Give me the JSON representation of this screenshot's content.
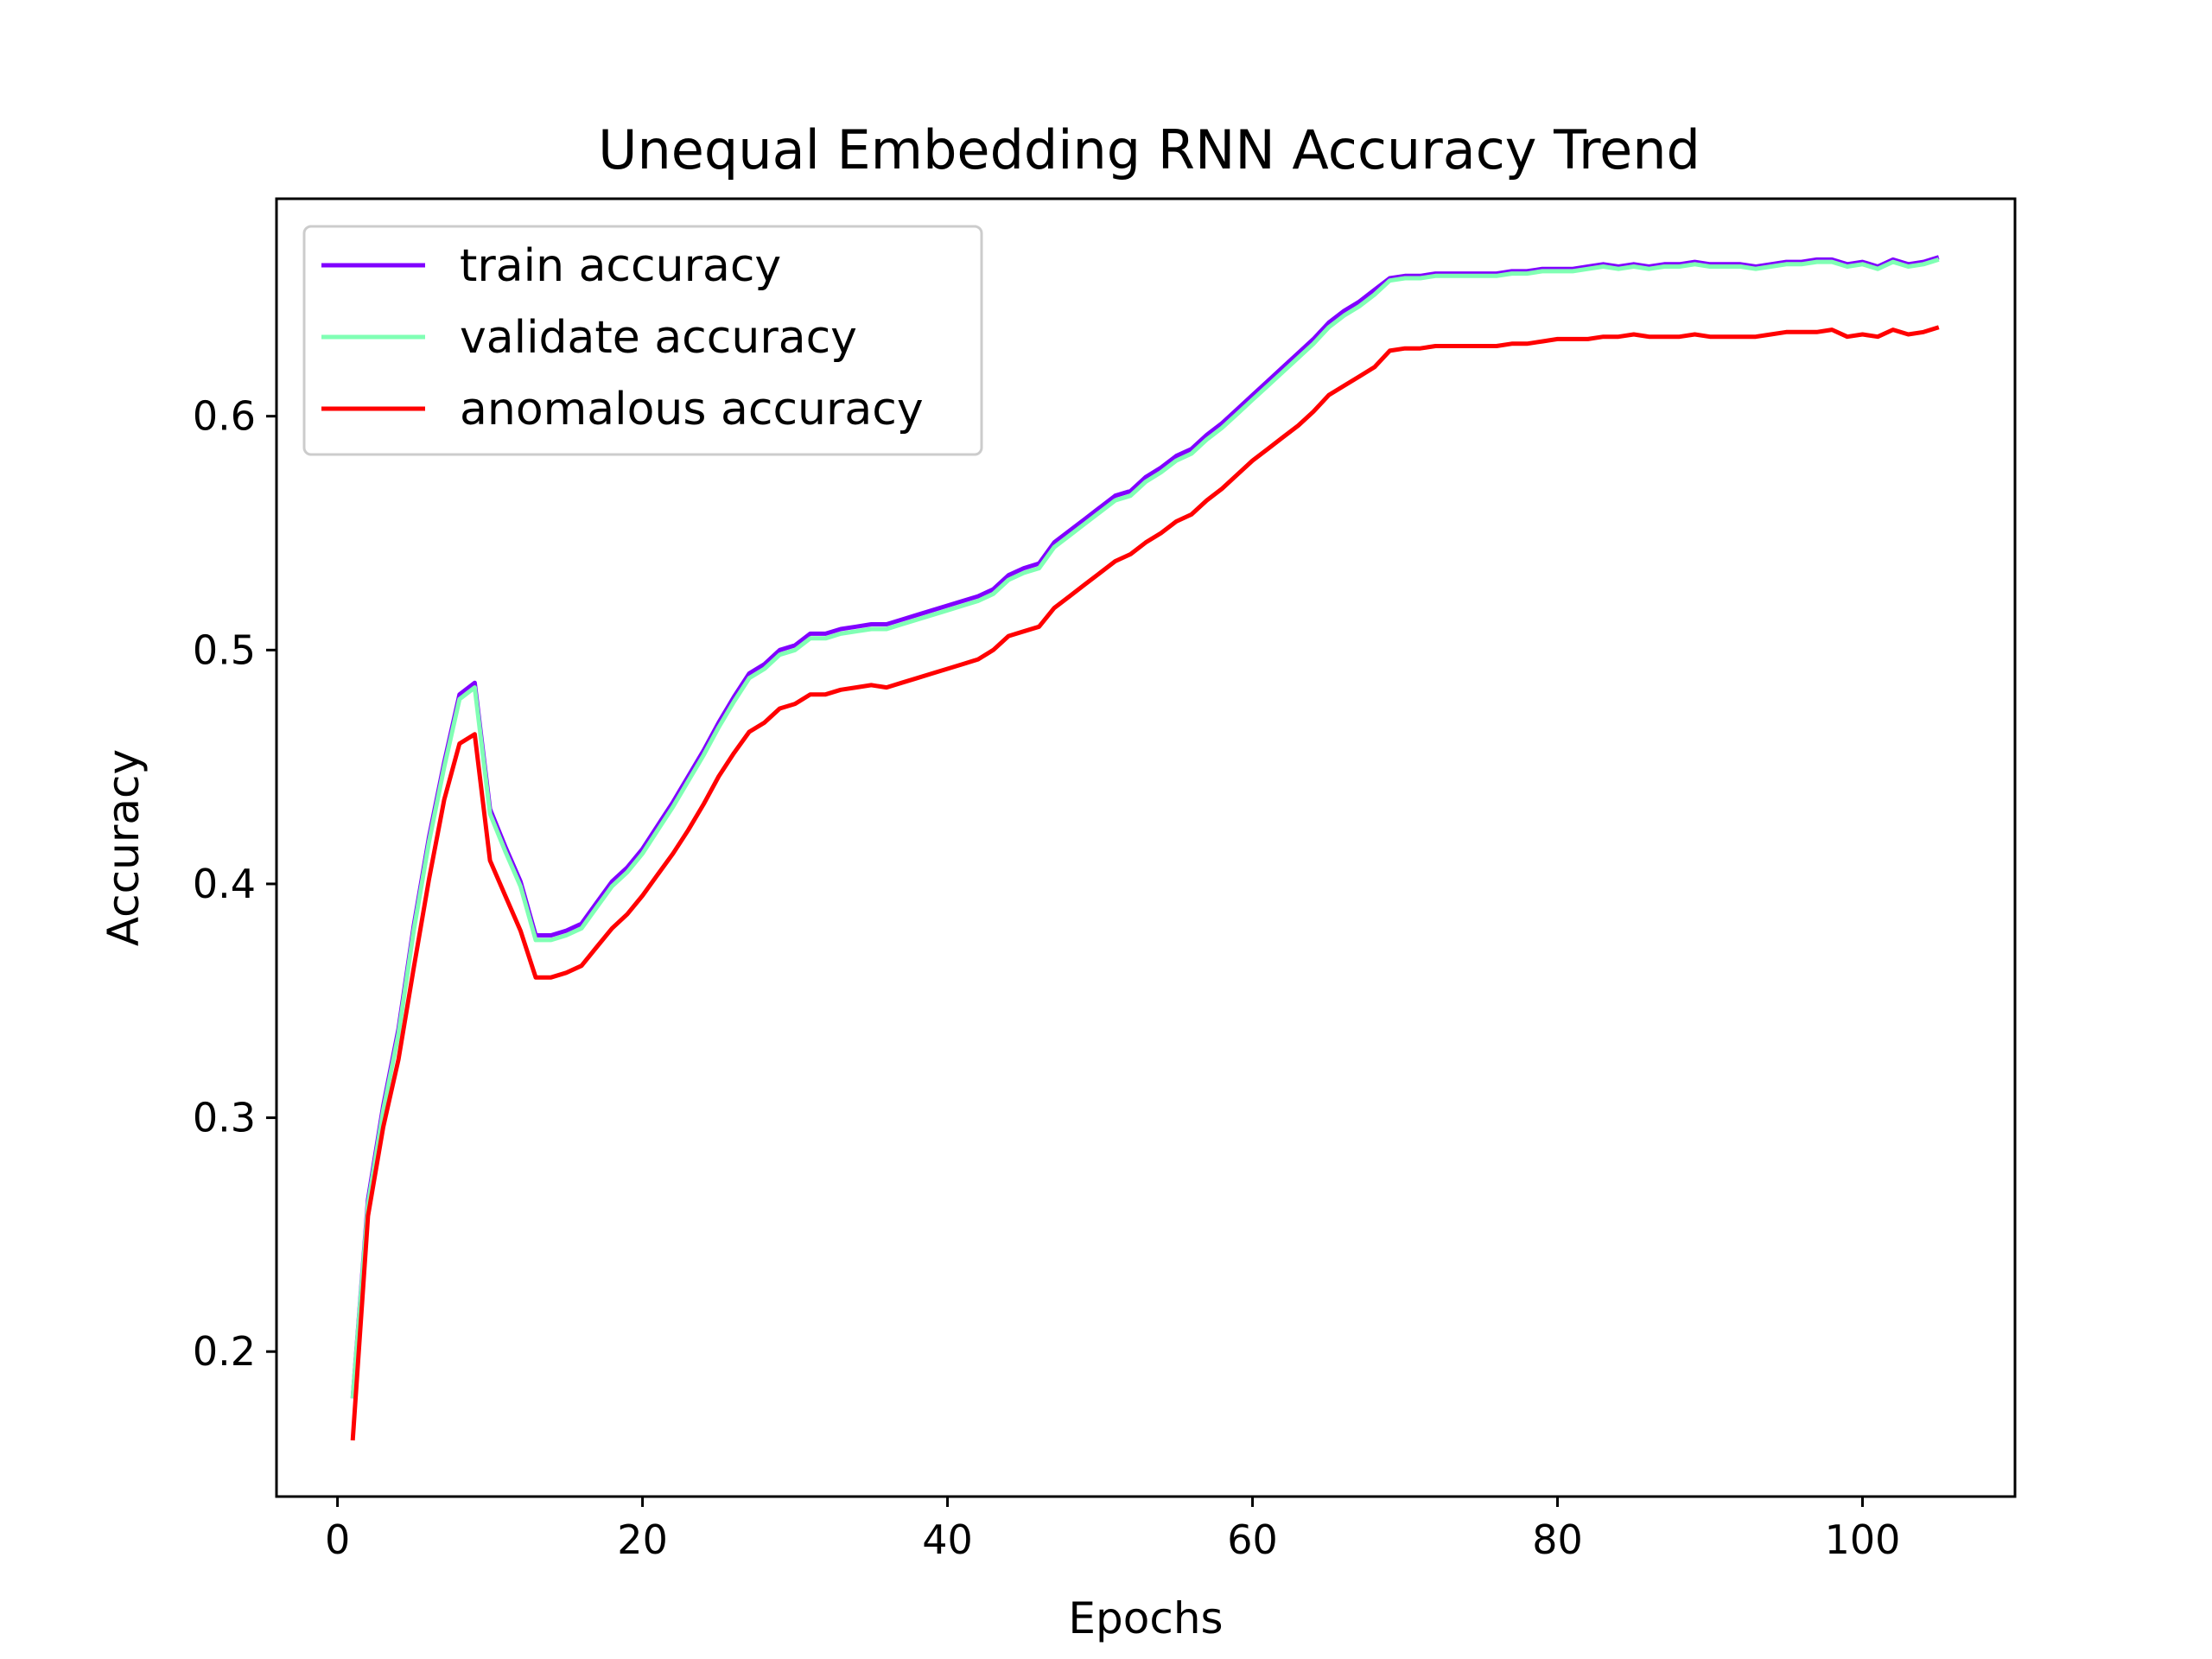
{
  "chart_data": {
    "type": "line",
    "title": "Unequal Embedding RNN Accuracy Trend",
    "xlabel": "Epochs",
    "ylabel": "Accuracy",
    "xlim": [
      -4,
      110
    ],
    "ylim": [
      0.138,
      0.693
    ],
    "xticks": [
      0,
      20,
      40,
      60,
      80,
      100
    ],
    "xtick_labels": [
      "0",
      "20",
      "40",
      "60",
      "80",
      "100"
    ],
    "yticks": [
      0.2,
      0.3,
      0.4,
      0.5,
      0.6
    ],
    "ytick_labels": [
      "0.2",
      "0.3",
      "0.4",
      "0.5",
      "0.6"
    ],
    "grid": false,
    "legend_position": "upper-left",
    "x": [
      1,
      2,
      3,
      4,
      5,
      6,
      7,
      8,
      9,
      10,
      11,
      12,
      13,
      14,
      15,
      16,
      17,
      18,
      19,
      20,
      21,
      22,
      23,
      24,
      25,
      26,
      27,
      28,
      29,
      30,
      31,
      32,
      33,
      34,
      35,
      36,
      37,
      38,
      39,
      40,
      41,
      42,
      43,
      44,
      45,
      46,
      47,
      48,
      49,
      50,
      51,
      52,
      53,
      54,
      55,
      56,
      57,
      58,
      59,
      60,
      61,
      62,
      63,
      64,
      65,
      66,
      67,
      68,
      69,
      70,
      71,
      72,
      73,
      74,
      75,
      76,
      77,
      78,
      79,
      80,
      81,
      82,
      83,
      84,
      85,
      86,
      87,
      88,
      89,
      90,
      91,
      92,
      93,
      94,
      95,
      96,
      97,
      98,
      99,
      100,
      101,
      102,
      103,
      104,
      105
    ],
    "series": [
      {
        "name": "train accuracy",
        "color": "#8000ff",
        "values": [
          0.18,
          0.265,
          0.305,
          0.338,
          0.382,
          0.42,
          0.452,
          0.481,
          0.486,
          0.432,
          0.416,
          0.401,
          0.378,
          0.378,
          0.38,
          0.383,
          0.392,
          0.401,
          0.407,
          0.415,
          0.425,
          0.435,
          0.446,
          0.457,
          0.469,
          0.48,
          0.49,
          0.494,
          0.5,
          0.502,
          0.507,
          0.507,
          0.509,
          0.51,
          0.511,
          0.511,
          0.513,
          0.515,
          0.517,
          0.519,
          0.521,
          0.523,
          0.526,
          0.532,
          0.535,
          0.537,
          0.546,
          0.551,
          0.556,
          0.561,
          0.566,
          0.568,
          0.574,
          0.578,
          0.583,
          0.586,
          0.592,
          0.597,
          0.603,
          0.609,
          0.615,
          0.621,
          0.627,
          0.633,
          0.64,
          0.645,
          0.649,
          0.654,
          0.659,
          0.66,
          0.66,
          0.661,
          0.661,
          0.661,
          0.661,
          0.661,
          0.662,
          0.662,
          0.663,
          0.663,
          0.663,
          0.664,
          0.665,
          0.664,
          0.665,
          0.664,
          0.665,
          0.665,
          0.666,
          0.665,
          0.665,
          0.665,
          0.664,
          0.665,
          0.666,
          0.666,
          0.667,
          0.667,
          0.665,
          0.666,
          0.664,
          0.667,
          0.665,
          0.666,
          0.668
        ]
      },
      {
        "name": "validate accuracy",
        "color": "#80ffb4",
        "values": [
          0.18,
          0.263,
          0.303,
          0.336,
          0.38,
          0.418,
          0.45,
          0.479,
          0.484,
          0.43,
          0.414,
          0.399,
          0.376,
          0.376,
          0.378,
          0.381,
          0.39,
          0.399,
          0.405,
          0.413,
          0.423,
          0.433,
          0.444,
          0.455,
          0.467,
          0.478,
          0.488,
          0.492,
          0.498,
          0.5,
          0.505,
          0.505,
          0.507,
          0.508,
          0.509,
          0.509,
          0.511,
          0.513,
          0.515,
          0.517,
          0.519,
          0.521,
          0.524,
          0.53,
          0.533,
          0.535,
          0.544,
          0.549,
          0.554,
          0.559,
          0.564,
          0.566,
          0.572,
          0.576,
          0.581,
          0.584,
          0.59,
          0.595,
          0.601,
          0.607,
          0.613,
          0.619,
          0.625,
          0.631,
          0.638,
          0.643,
          0.647,
          0.652,
          0.658,
          0.659,
          0.659,
          0.66,
          0.66,
          0.66,
          0.66,
          0.66,
          0.661,
          0.661,
          0.662,
          0.662,
          0.662,
          0.663,
          0.664,
          0.663,
          0.664,
          0.663,
          0.664,
          0.664,
          0.665,
          0.664,
          0.664,
          0.664,
          0.663,
          0.664,
          0.665,
          0.665,
          0.666,
          0.666,
          0.664,
          0.665,
          0.663,
          0.666,
          0.664,
          0.665,
          0.667
        ]
      },
      {
        "name": "anomalous accuracy",
        "color": "#ff0000",
        "values": [
          0.162,
          0.258,
          0.296,
          0.325,
          0.364,
          0.402,
          0.436,
          0.46,
          0.464,
          0.41,
          0.395,
          0.38,
          0.36,
          0.36,
          0.362,
          0.365,
          0.373,
          0.381,
          0.387,
          0.395,
          0.404,
          0.413,
          0.423,
          0.434,
          0.446,
          0.456,
          0.465,
          0.469,
          0.475,
          0.477,
          0.481,
          0.481,
          0.483,
          0.484,
          0.485,
          0.484,
          0.486,
          0.488,
          0.49,
          0.492,
          0.494,
          0.496,
          0.5,
          0.506,
          0.508,
          0.51,
          0.518,
          0.523,
          0.528,
          0.533,
          0.538,
          0.541,
          0.546,
          0.55,
          0.555,
          0.558,
          0.564,
          0.569,
          0.575,
          0.581,
          0.586,
          0.591,
          0.596,
          0.602,
          0.609,
          0.613,
          0.617,
          0.621,
          0.628,
          0.629,
          0.629,
          0.63,
          0.63,
          0.63,
          0.63,
          0.63,
          0.631,
          0.631,
          0.632,
          0.633,
          0.633,
          0.633,
          0.634,
          0.634,
          0.635,
          0.634,
          0.634,
          0.634,
          0.635,
          0.634,
          0.634,
          0.634,
          0.634,
          0.635,
          0.636,
          0.636,
          0.636,
          0.637,
          0.634,
          0.635,
          0.634,
          0.637,
          0.635,
          0.636,
          0.638
        ]
      }
    ]
  }
}
